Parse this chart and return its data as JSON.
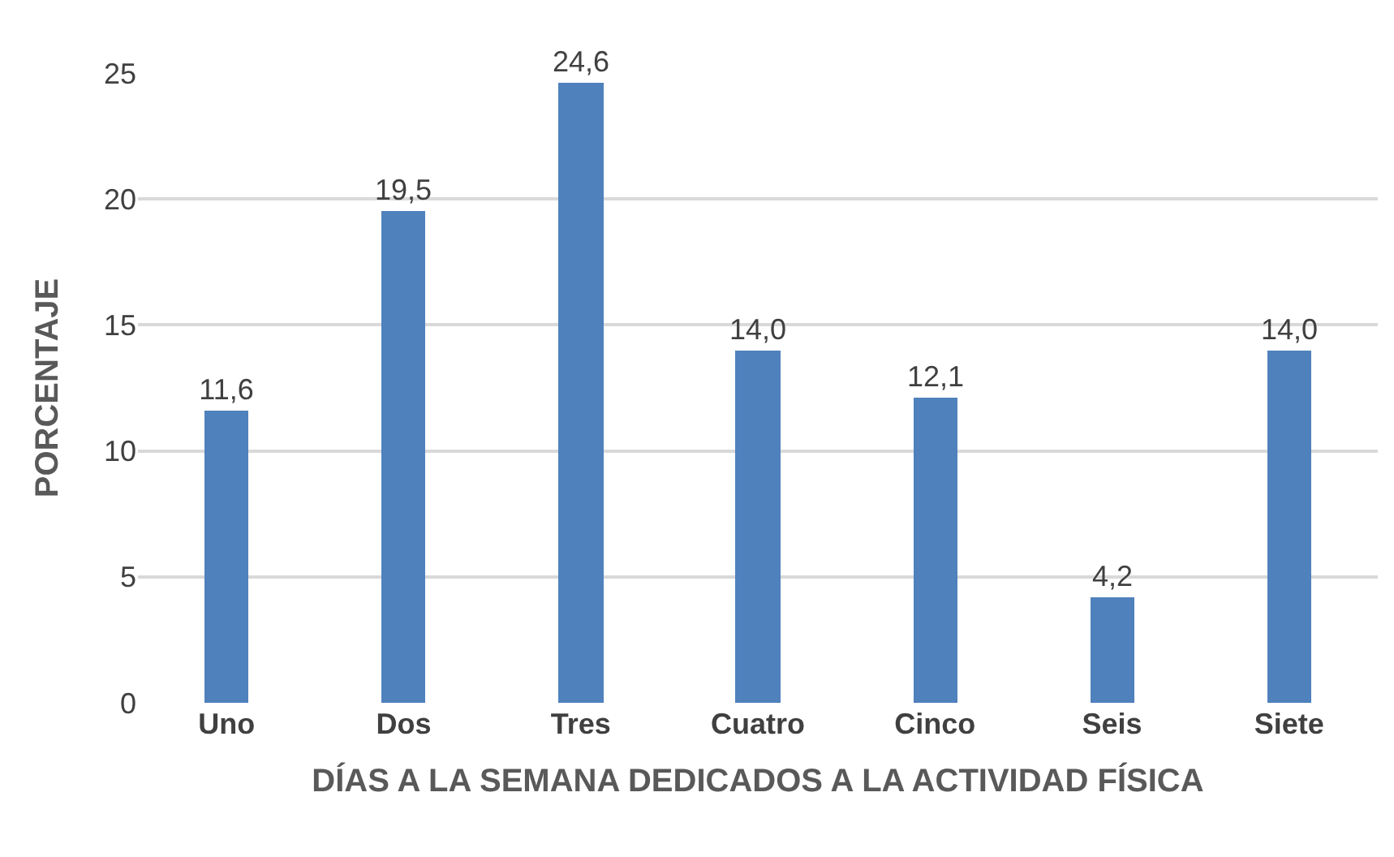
{
  "chart_data": {
    "type": "bar",
    "xlabel": "DÍAS A LA SEMANA DEDICADOS A LA ACTIVIDAD FÍSICA",
    "ylabel": "PORCENTAJE",
    "categories": [
      "Uno",
      "Dos",
      "Tres",
      "Cuatro",
      "Cinco",
      "Seis",
      "Siete"
    ],
    "values": [
      11.6,
      19.5,
      24.6,
      14.0,
      12.1,
      4.2,
      14.0
    ],
    "value_labels": [
      "11,6",
      "19,5",
      "24,6",
      "14,0",
      "12,1",
      "4,2",
      "14,0"
    ],
    "color": "#4f81bd",
    "ylim": [
      0,
      25
    ],
    "yticks": [
      0,
      5,
      10,
      15,
      20,
      25
    ],
    "grid": "y"
  }
}
